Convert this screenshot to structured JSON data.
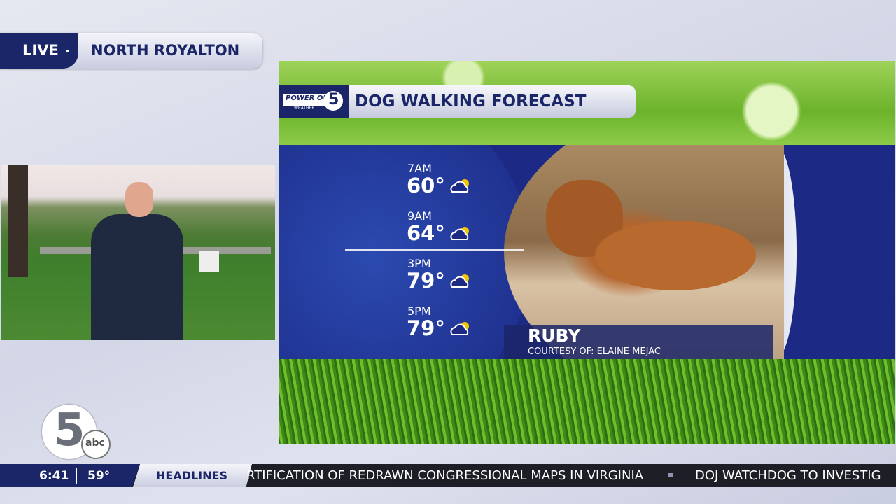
{
  "live_bug": {
    "status": "LIVE",
    "location": "NORTH ROYALTON"
  },
  "forecast_panel": {
    "logo": {
      "top": "POWER OF",
      "number": "5",
      "bottom": "WEATHER"
    },
    "title": "DOG WALKING FORECAST",
    "hours": [
      {
        "time": "7AM",
        "temp": "60°"
      },
      {
        "time": "9AM",
        "temp": "64°"
      },
      {
        "time": "3PM",
        "temp": "79°"
      },
      {
        "time": "5PM",
        "temp": "79°"
      }
    ],
    "pet": {
      "name": "RUBY",
      "credit": "COURTESY OF: ELAINE MEJAC"
    }
  },
  "station_logo": {
    "number": "5",
    "network": "abc"
  },
  "ticker": {
    "time": "6:41",
    "temperature": "59°",
    "section": "HEADLINES",
    "headlines": [
      "RTIFICATION OF REDRAWN CONGRESSIONAL MAPS IN VIRGINIA",
      "DOJ WATCHDOG TO INVESTIG"
    ]
  }
}
